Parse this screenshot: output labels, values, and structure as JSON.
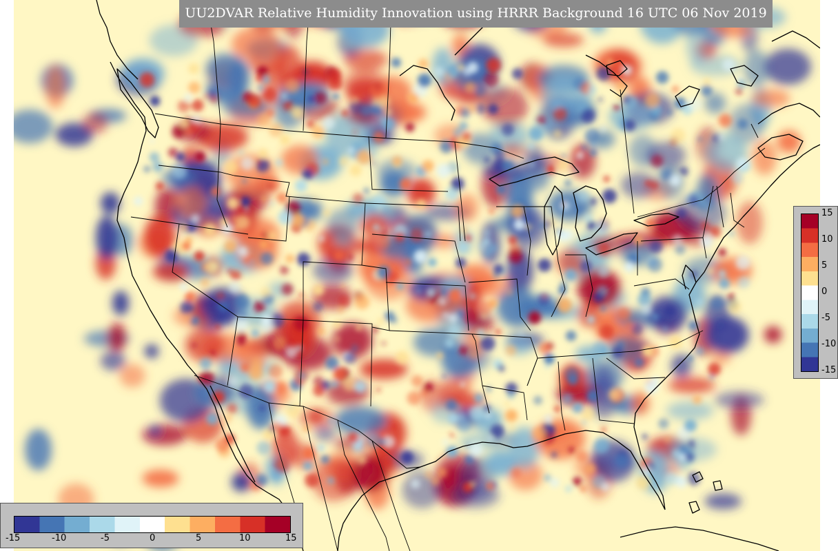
{
  "title": "UU2DVAR Relative Humidity Innovation using HRRR Background 16 UTC 06 Nov 2019",
  "colorbar": {
    "min": -15,
    "max": 15,
    "ticks": [
      "15",
      "10",
      "5",
      "0",
      "-5",
      "-10",
      "-15"
    ],
    "bottom_ticks": [
      "-15",
      "-10",
      "-5",
      "0",
      "5",
      "10",
      "15"
    ],
    "colors": [
      "#313695",
      "#4575b4",
      "#74add1",
      "#abd9e9",
      "#e0f3f8",
      "#ffffff",
      "#fee090",
      "#fdae61",
      "#f46d43",
      "#d73027",
      "#a50026"
    ]
  },
  "map": {
    "background_color": "#fff7c4",
    "boundary_color": "#000000"
  }
}
